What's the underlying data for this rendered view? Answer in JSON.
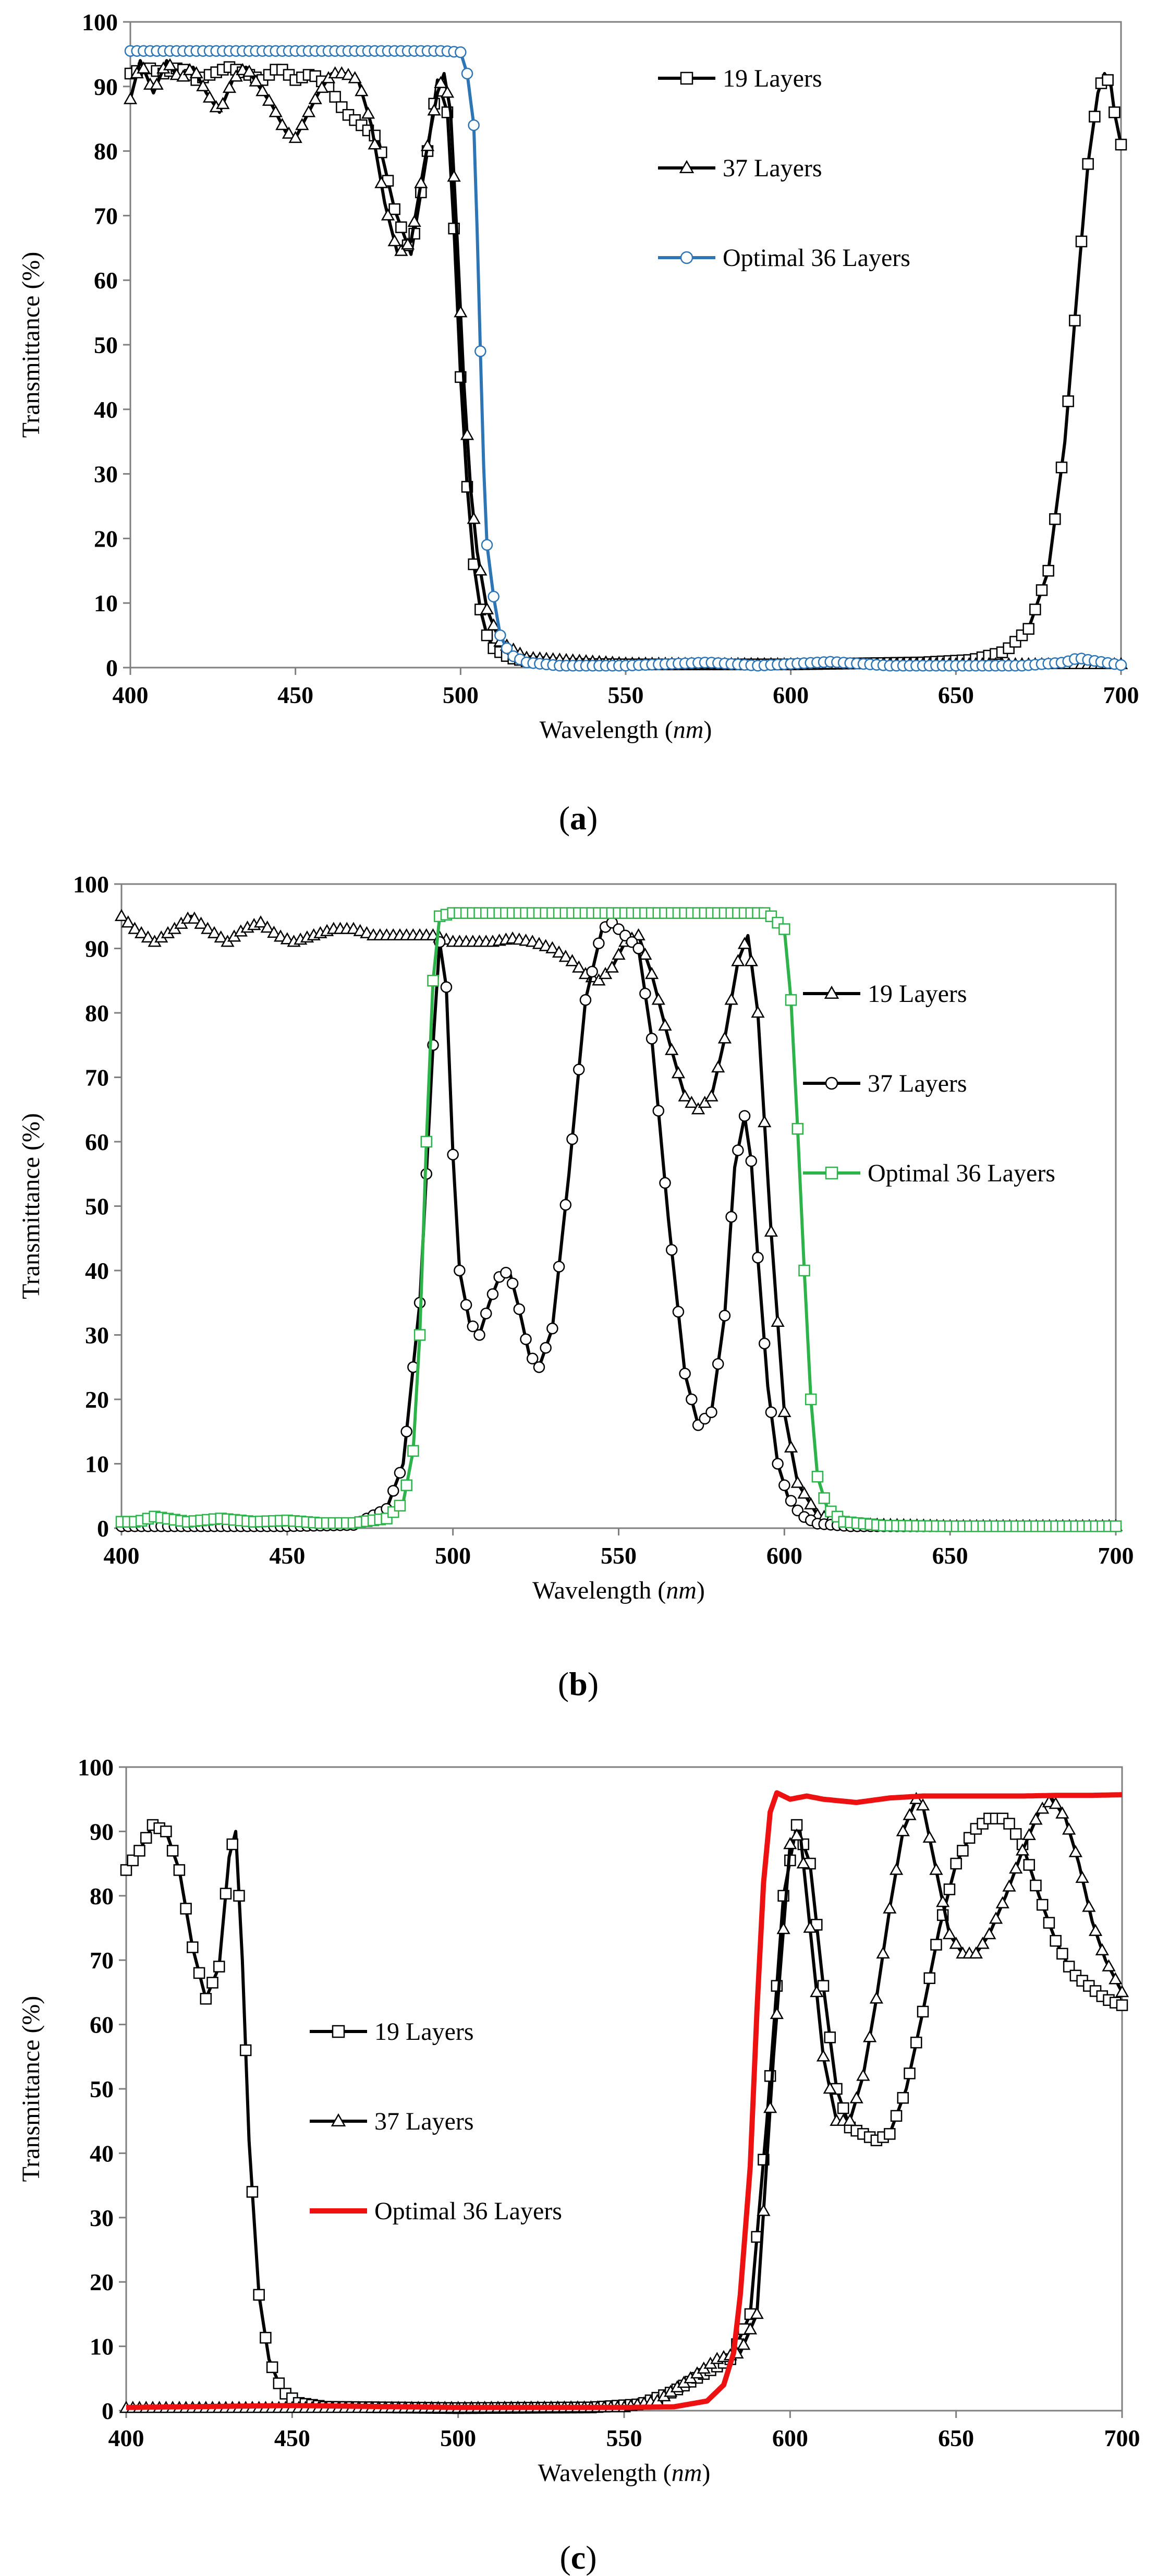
{
  "chart_data": [
    {
      "id": "a",
      "type": "line",
      "caption_letter": "a",
      "xlabel_prefix": "Wavelength (",
      "xlabel_unit": "nm",
      "xlabel_suffix": ")",
      "ylabel": "Transmittance (%)",
      "xlim": [
        400,
        700
      ],
      "ylim": [
        0,
        100
      ],
      "xticks": [
        400,
        450,
        500,
        550,
        600,
        650,
        700
      ],
      "yticks": [
        0,
        10,
        20,
        30,
        40,
        50,
        60,
        70,
        80,
        90,
        100
      ],
      "legend_position": "top-right",
      "series": [
        {
          "name": "19 Layers",
          "color": "#000000",
          "marker": "square",
          "x": [
            400,
            405,
            410,
            415,
            420,
            425,
            430,
            435,
            440,
            445,
            450,
            455,
            460,
            465,
            470,
            475,
            480,
            485,
            490,
            493,
            496,
            498,
            500,
            502,
            504,
            506,
            508,
            510,
            515,
            520,
            530,
            550,
            600,
            640,
            655,
            665,
            672,
            678,
            683,
            687,
            690,
            693,
            695,
            697,
            698,
            700
          ],
          "y": [
            92,
            93,
            92,
            93,
            91,
            92,
            93,
            92,
            91,
            93,
            91,
            92,
            90,
            86,
            84,
            82,
            71,
            64,
            80,
            91,
            86,
            68,
            45,
            28,
            16,
            9,
            5,
            3,
            1.5,
            1,
            0.6,
            0.5,
            0.5,
            0.8,
            1.2,
            2.5,
            6,
            15,
            35,
            60,
            78,
            89,
            92,
            90,
            86,
            81
          ]
        },
        {
          "name": "37 Layers",
          "color": "#000000",
          "marker": "triangle",
          "x": [
            400,
            403,
            407,
            411,
            415,
            419,
            423,
            427,
            431,
            435,
            439,
            443,
            447,
            450,
            453,
            457,
            461,
            465,
            469,
            473,
            477,
            481,
            485,
            489,
            493,
            495,
            497,
            499,
            501,
            503,
            505,
            508,
            512,
            520,
            550,
            600,
            650,
            700
          ],
          "y": [
            88,
            94,
            89,
            94,
            91,
            93,
            89,
            86,
            91,
            93,
            90,
            87,
            83,
            82,
            85,
            89,
            92,
            92,
            91,
            84,
            72,
            64,
            66,
            78,
            89,
            92,
            86,
            66,
            44,
            28,
            18,
            9,
            4,
            1.5,
            0.6,
            0.5,
            0.5,
            0.5
          ]
        },
        {
          "name": "Optimal 36 Layers",
          "color": "#2e75b6",
          "marker": "circle",
          "x": [
            400,
            420,
            440,
            460,
            480,
            495,
            500,
            502,
            504,
            505,
            506,
            507,
            508,
            510,
            512,
            515,
            520,
            530,
            550,
            575,
            590,
            612,
            630,
            650,
            670,
            683,
            687,
            690,
            695,
            700
          ],
          "y": [
            95.5,
            95.5,
            95.5,
            95.5,
            95.5,
            95.5,
            95.3,
            92,
            84,
            68,
            49,
            31,
            19,
            11,
            5,
            2,
            0.8,
            0.3,
            0.3,
            0.8,
            0.3,
            0.9,
            0.3,
            0.3,
            0.3,
            0.8,
            1.5,
            1.2,
            0.8,
            0.4
          ]
        }
      ]
    },
    {
      "id": "b",
      "type": "line",
      "caption_letter": "b",
      "xlabel_prefix": "Wavelength (",
      "xlabel_unit": "nm",
      "xlabel_suffix": ")",
      "ylabel": "Transmittance (%)",
      "xlim": [
        400,
        700
      ],
      "ylim": [
        0,
        100
      ],
      "xticks": [
        400,
        450,
        500,
        550,
        600,
        650,
        700
      ],
      "yticks": [
        0,
        10,
        20,
        30,
        40,
        50,
        60,
        70,
        80,
        90,
        100
      ],
      "legend_position": "right",
      "series": [
        {
          "name": "19 Layers",
          "color": "#000000",
          "marker": "triangle",
          "x": [
            400,
            404,
            410,
            416,
            421,
            426,
            432,
            437,
            442,
            447,
            452,
            458,
            464,
            470,
            476,
            482,
            488,
            494,
            500,
            506,
            512,
            518,
            524,
            530,
            536,
            540,
            544,
            548,
            552,
            556,
            560,
            565,
            570,
            574,
            578,
            582,
            586,
            589,
            592,
            596,
            600,
            604,
            610,
            620,
            650,
            700
          ],
          "y": [
            95,
            93,
            91,
            93,
            95,
            93,
            91,
            93,
            94,
            92,
            91,
            92,
            93,
            93,
            92,
            92,
            92,
            92,
            91,
            91,
            91,
            91.5,
            91,
            90,
            88,
            86,
            85,
            87,
            91,
            92,
            86,
            76,
            67,
            65,
            67,
            76,
            88,
            92,
            80,
            46,
            18,
            7,
            2,
            0.6,
            0.3,
            0.3
          ]
        },
        {
          "name": "37 Layers",
          "color": "#000000",
          "marker": "circle",
          "x": [
            400,
            450,
            470,
            480,
            485,
            490,
            494,
            496,
            498,
            500,
            502,
            505,
            508,
            511,
            514,
            517,
            520,
            523,
            526,
            530,
            535,
            540,
            545,
            548,
            552,
            556,
            560,
            565,
            570,
            574,
            578,
            582,
            585,
            588,
            590,
            592,
            595,
            598,
            601,
            605,
            610,
            620,
            650,
            700
          ],
          "y": [
            0.3,
            0.3,
            0.5,
            3,
            10,
            35,
            75,
            91,
            84,
            58,
            40,
            32,
            30,
            35,
            39,
            40,
            34,
            27,
            25,
            31,
            55,
            82,
            93,
            94,
            92,
            90,
            76,
            48,
            24,
            16,
            18,
            33,
            56,
            64,
            57,
            42,
            22,
            10,
            5,
            2,
            0.7,
            0.3,
            0.3,
            0.3
          ]
        },
        {
          "name": "Optimal 36 Layers",
          "color": "#2db34a",
          "marker": "square",
          "x": [
            400,
            405,
            410,
            420,
            430,
            440,
            450,
            460,
            470,
            480,
            485,
            488,
            490,
            492,
            494,
            496,
            500,
            520,
            540,
            560,
            580,
            595,
            600,
            602,
            604,
            606,
            608,
            610,
            613,
            618,
            630,
            650,
            700
          ],
          "y": [
            1,
            1,
            1.8,
            1,
            1.5,
            1,
            1.2,
            0.8,
            0.8,
            1.5,
            4,
            12,
            30,
            60,
            85,
            95,
            95.5,
            95.5,
            95.5,
            95.5,
            95.5,
            95.5,
            93,
            82,
            62,
            40,
            20,
            8,
            3,
            1,
            0.4,
            0.3,
            0.3
          ]
        }
      ]
    },
    {
      "id": "c",
      "type": "line",
      "caption_letter": "c",
      "xlabel_prefix": "Wavelength (",
      "xlabel_unit": "nm",
      "xlabel_suffix": ")",
      "ylabel": "Transmittance (%)",
      "xlim": [
        400,
        700
      ],
      "ylim": [
        0,
        100
      ],
      "xticks": [
        400,
        450,
        500,
        550,
        600,
        650,
        700
      ],
      "yticks": [
        0,
        10,
        20,
        30,
        40,
        50,
        60,
        70,
        80,
        90,
        100
      ],
      "legend_position": "center-left",
      "series": [
        {
          "name": "19 Layers",
          "color": "#000000",
          "marker": "square",
          "x": [
            400,
            404,
            408,
            412,
            416,
            420,
            424,
            428,
            431,
            433,
            435,
            437,
            440,
            443,
            447,
            452,
            460,
            500,
            540,
            555,
            565,
            575,
            582,
            588,
            593,
            598,
            602,
            606,
            610,
            614,
            618,
            622,
            626,
            630,
            635,
            640,
            645,
            650,
            655,
            660,
            665,
            670,
            675,
            680,
            685,
            690,
            695,
            700
          ],
          "y": [
            84,
            87,
            91,
            90,
            84,
            72,
            64,
            69,
            86,
            90,
            70,
            42,
            18,
            8,
            3,
            1.2,
            0.6,
            0.4,
            0.5,
            1,
            3,
            6,
            8,
            15,
            45,
            80,
            91,
            85,
            66,
            50,
            44,
            43,
            42,
            43,
            50,
            62,
            75,
            85,
            90,
            92,
            92,
            88,
            80,
            73,
            68,
            66,
            64,
            63
          ]
        },
        {
          "name": "37 Layers",
          "color": "#000000",
          "marker": "triangle",
          "x": [
            400,
            450,
            500,
            550,
            560,
            570,
            578,
            585,
            590,
            595,
            600,
            603,
            606,
            610,
            614,
            618,
            622,
            626,
            630,
            634,
            638,
            640,
            644,
            648,
            652,
            656,
            660,
            665,
            670,
            675,
            679,
            683,
            687,
            691,
            695,
            700
          ],
          "y": [
            0.4,
            0.4,
            0.4,
            0.5,
            1.5,
            5,
            8,
            9,
            15,
            55,
            88,
            90,
            75,
            55,
            45,
            45,
            52,
            64,
            78,
            90,
            95,
            94,
            84,
            74,
            71,
            71,
            74,
            80,
            87,
            93,
            95,
            92,
            85,
            76,
            70,
            65
          ]
        },
        {
          "name": "Optimal 36 Layers",
          "color": "#ee1111",
          "marker": "none",
          "x": [
            400,
            450,
            500,
            550,
            565,
            575,
            580,
            583,
            585,
            588,
            590,
            592,
            594,
            596,
            598,
            600,
            605,
            610,
            620,
            630,
            640,
            650,
            660,
            670,
            680,
            690,
            700
          ],
          "y": [
            0.5,
            0.8,
            0.5,
            0.5,
            0.6,
            1.5,
            4,
            9,
            18,
            38,
            62,
            82,
            93,
            96,
            95.5,
            95,
            95.5,
            95,
            94.5,
            95.2,
            95.5,
            95.5,
            95.5,
            95.5,
            95.6,
            95.6,
            95.7
          ]
        }
      ]
    }
  ]
}
